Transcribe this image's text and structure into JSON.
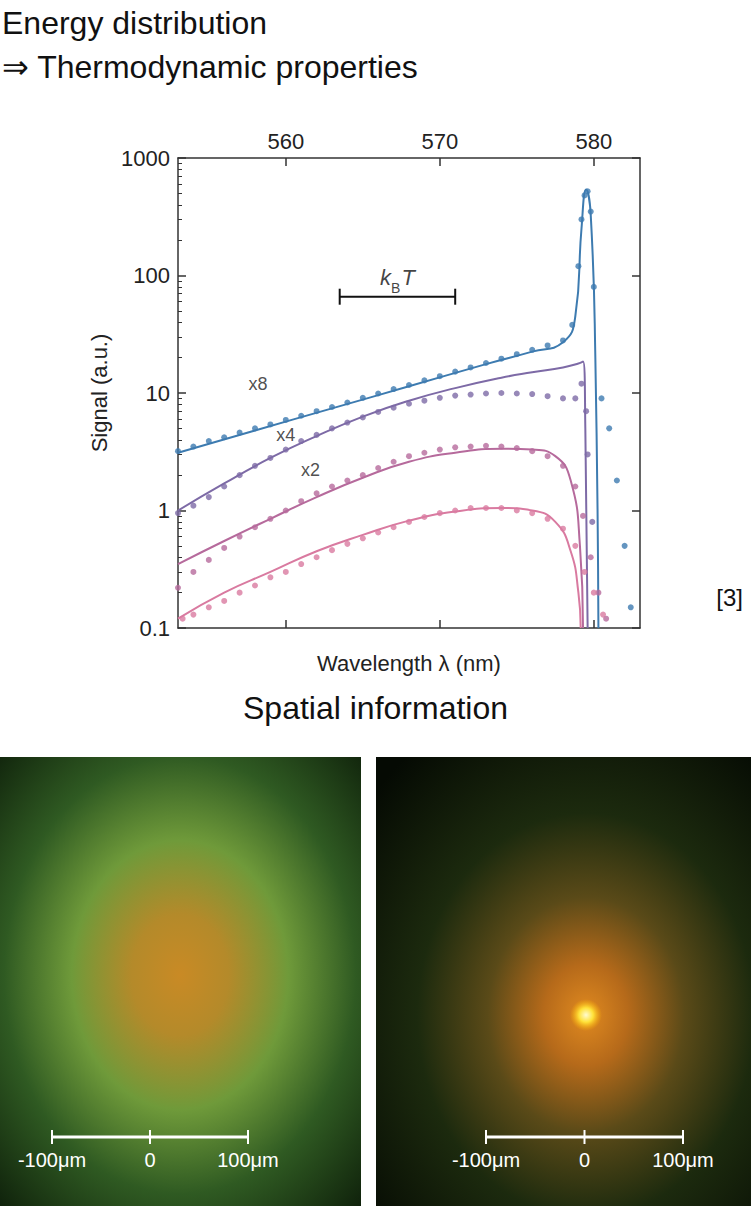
{
  "header": {
    "title": "Energy distribution",
    "subtitle": "⇒ Thermodynamic properties"
  },
  "citation": "[3]",
  "chart_data": {
    "type": "scatter",
    "xlabel": "Wavelength λ (nm)",
    "ylabel": "Signal (a.u.)",
    "xlim": [
      553,
      583
    ],
    "xticks": [
      560,
      570,
      580
    ],
    "ylim": [
      0.1,
      1000
    ],
    "yticks": [
      0.1,
      1,
      10,
      100,
      1000
    ],
    "log": "y",
    "grid": false,
    "series": [
      {
        "type": "scatter",
        "marker": "circle",
        "color": "#3d7bb0",
        "x": [
          553,
          554,
          555,
          556,
          557,
          558,
          559,
          560,
          561,
          562,
          563,
          564,
          565,
          566,
          567,
          568,
          569,
          570,
          571,
          572,
          573,
          574,
          575,
          576,
          577,
          578,
          578.6,
          579.0,
          579.2,
          579.4,
          579.6,
          579.8,
          580.0,
          580.5,
          581,
          581.5,
          582,
          582.4
        ],
        "values": [
          3.2,
          3.5,
          3.9,
          4.2,
          4.6,
          5.0,
          5.4,
          5.9,
          6.4,
          7.0,
          7.6,
          8.3,
          9.1,
          9.9,
          10.8,
          11.7,
          12.8,
          13.9,
          15.2,
          16.5,
          18.0,
          19.6,
          21.4,
          23.3,
          25.4,
          28,
          38,
          120,
          300,
          480,
          520,
          350,
          80,
          9,
          5,
          1.8,
          0.5,
          0.15
        ]
      },
      {
        "type": "line",
        "line_style": "solid",
        "color": "#3d7bb0",
        "x": [
          553,
          558,
          563,
          568,
          573,
          576,
          578,
          578.8,
          579.2,
          579.5,
          579.8,
          580.1,
          580.3
        ],
        "values": [
          3.1,
          4.8,
          7.4,
          11.4,
          17.6,
          22.5,
          27,
          45,
          250,
          540,
          330,
          20,
          0.1
        ]
      },
      {
        "type": "scatter",
        "marker": "circle",
        "color": "#7d6aa6",
        "x": [
          553,
          554,
          555,
          556,
          557,
          558,
          559,
          560,
          561,
          562,
          563,
          564,
          565,
          566,
          567,
          568,
          569,
          570,
          571,
          572,
          573,
          574,
          575,
          576,
          577,
          578,
          578.8,
          579.2,
          579.5,
          579.6,
          579.9
        ],
        "values": [
          0.95,
          1.1,
          1.3,
          1.6,
          2.0,
          2.4,
          2.8,
          3.3,
          3.9,
          4.4,
          5.0,
          5.6,
          6.2,
          6.9,
          7.5,
          8.1,
          8.6,
          9.1,
          9.5,
          9.7,
          9.9,
          10.0,
          9.9,
          9.8,
          9.4,
          9.0,
          9.0,
          12,
          7,
          3,
          0.8
        ]
      },
      {
        "type": "line",
        "line_style": "solid",
        "color": "#7d6aa6",
        "x": [
          553,
          556,
          559,
          562,
          565,
          568,
          571,
          574,
          576,
          578,
          579,
          579.3,
          579.45,
          579.6
        ],
        "values": [
          1.0,
          1.7,
          2.8,
          4.3,
          6.3,
          8.6,
          11,
          13.5,
          15,
          16.5,
          17.8,
          18.5,
          5,
          0.1
        ]
      },
      {
        "type": "scatter",
        "marker": "circle",
        "color": "#b66a9c",
        "x": [
          553,
          554,
          555,
          556,
          557,
          558,
          559,
          560,
          561,
          562,
          563,
          564,
          565,
          566,
          567,
          568,
          569,
          570,
          571,
          572,
          573,
          574,
          575,
          576,
          577,
          578,
          578.8,
          579.3,
          579.8,
          580.3,
          580.8
        ],
        "values": [
          0.22,
          0.3,
          0.38,
          0.48,
          0.6,
          0.72,
          0.85,
          1.0,
          1.2,
          1.4,
          1.6,
          1.8,
          2.0,
          2.3,
          2.6,
          2.9,
          3.1,
          3.3,
          3.45,
          3.5,
          3.55,
          3.5,
          3.4,
          3.2,
          2.9,
          2.4,
          1.6,
          0.9,
          0.4,
          0.2,
          0.12
        ]
      },
      {
        "type": "line",
        "line_style": "solid",
        "color": "#b66a9c",
        "x": [
          553,
          556,
          559,
          562,
          565,
          568,
          571,
          574,
          576,
          577.5,
          578.5,
          579.1,
          579.3
        ],
        "values": [
          0.35,
          0.55,
          0.85,
          1.3,
          1.9,
          2.6,
          3.1,
          3.35,
          3.3,
          2.9,
          1.8,
          0.5,
          0.1
        ]
      },
      {
        "type": "scatter",
        "marker": "circle",
        "color": "#d97aa0",
        "x": [
          553.3,
          554,
          555,
          556,
          557,
          558,
          559,
          560,
          561,
          562,
          563,
          564,
          565,
          566,
          567,
          568,
          569,
          570,
          571,
          572,
          573,
          574,
          575,
          576,
          577,
          578,
          578.8,
          579.4,
          580,
          580.6
        ],
        "values": [
          0.12,
          0.13,
          0.15,
          0.17,
          0.2,
          0.23,
          0.27,
          0.3,
          0.35,
          0.4,
          0.46,
          0.52,
          0.58,
          0.65,
          0.72,
          0.8,
          0.88,
          0.95,
          1.0,
          1.05,
          1.05,
          1.05,
          1.0,
          0.95,
          0.85,
          0.7,
          0.5,
          0.3,
          0.2,
          0.13
        ]
      },
      {
        "type": "line",
        "line_style": "solid",
        "color": "#d97aa0",
        "x": [
          553,
          556,
          559,
          562,
          565,
          568,
          571,
          574,
          576,
          577.5,
          578.5,
          579,
          579.15
        ],
        "values": [
          0.12,
          0.2,
          0.3,
          0.45,
          0.62,
          0.82,
          0.98,
          1.05,
          1.0,
          0.8,
          0.45,
          0.2,
          0.1
        ]
      }
    ],
    "annotations": [
      {
        "text": "x8",
        "x": 558.2,
        "y": 12
      },
      {
        "text": "x4",
        "x": 560.0,
        "y": 4.4
      },
      {
        "text": "x2",
        "x": 561.6,
        "y": 2.2
      }
    ],
    "scale_bar": {
      "label_parts": [
        "k",
        "B",
        "T"
      ],
      "x": [
        563.5,
        571
      ],
      "y": 66
    }
  },
  "section_title": "Spatial information",
  "images": [
    {
      "scale_labels": [
        "-100μm",
        "0",
        "100μm"
      ]
    },
    {
      "scale_labels": [
        "-100μm",
        "0",
        "100μm"
      ]
    }
  ]
}
